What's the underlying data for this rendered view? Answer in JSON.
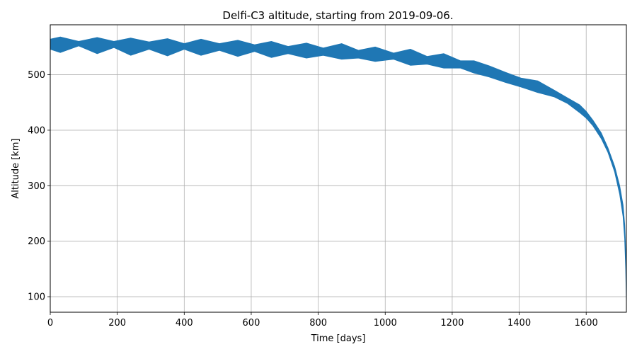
{
  "chart_data": {
    "type": "area",
    "title": "Delfi-C3 altitude, starting from 2019-09-06.",
    "xlabel": "Time [days]",
    "ylabel": "Altitude [km]",
    "xlim": [
      0,
      1720
    ],
    "ylim": [
      72,
      590
    ],
    "xticks": [
      0,
      200,
      400,
      600,
      800,
      1000,
      1200,
      1400,
      1600
    ],
    "yticks": [
      100,
      200,
      300,
      400,
      500
    ],
    "grid": true,
    "series_color": "#1f77b4",
    "series": [
      {
        "x": [
          0,
          30,
          85,
          140,
          190,
          240,
          295,
          350,
          400,
          450,
          505,
          560,
          610,
          660,
          710,
          765,
          815,
          870,
          920,
          970,
          1025,
          1075,
          1125,
          1175,
          1225,
          1265,
          1310,
          1360,
          1405,
          1455,
          1505,
          1545,
          1580,
          1600,
          1620,
          1645,
          1665,
          1685,
          1700,
          1710,
          1715,
          1718,
          1720
        ],
        "upper": [
          564,
          568,
          560,
          567,
          560,
          566,
          559,
          565,
          556,
          564,
          556,
          562,
          554,
          560,
          551,
          557,
          548,
          556,
          544,
          550,
          539,
          546,
          533,
          538,
          525,
          525,
          516,
          504,
          494,
          489,
          472,
          458,
          446,
          434,
          418,
          395,
          368,
          335,
          300,
          265,
          230,
          180,
          120
        ],
        "lower": [
          546,
          540,
          552,
          538,
          549,
          535,
          546,
          534,
          546,
          535,
          544,
          533,
          542,
          531,
          538,
          530,
          535,
          528,
          530,
          524,
          528,
          517,
          519,
          512,
          512,
          503,
          496,
          486,
          478,
          468,
          460,
          448,
          432,
          422,
          408,
          385,
          360,
          325,
          285,
          245,
          205,
          150,
          92
        ]
      }
    ]
  }
}
